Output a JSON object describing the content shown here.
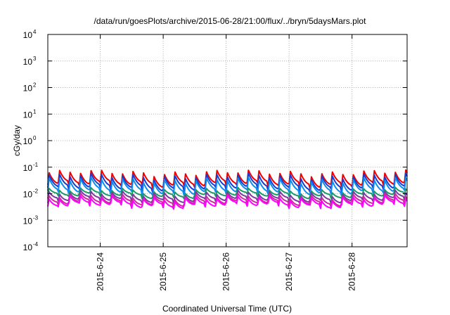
{
  "chart_data": {
    "type": "line",
    "title": "/data/run/goesPlots/archive/2015-06-28/21:00/flux/../bryn/5daysMars.plot",
    "xlabel": "Coordinated Universal Time (UTC)",
    "ylabel": "cGy/day",
    "yscale": "log",
    "ylim": [
      0.0001,
      10000
    ],
    "y_ticks": [
      {
        "base": "10",
        "exp": "-4"
      },
      {
        "base": "10",
        "exp": "-3"
      },
      {
        "base": "10",
        "exp": "-2"
      },
      {
        "base": "10",
        "exp": "-1"
      },
      {
        "base": "10",
        "exp": "0"
      },
      {
        "base": "10",
        "exp": "1"
      },
      {
        "base": "10",
        "exp": "2"
      },
      {
        "base": "10",
        "exp": "3"
      },
      {
        "base": "10",
        "exp": "4"
      }
    ],
    "x_range_days": [
      "2015-06-23 04:00",
      "2015-06-28 21:00"
    ],
    "x_ticks": [
      "2015-6-24",
      "2015-6-25",
      "2015-6-26",
      "2015-6-27",
      "2015-6-28"
    ],
    "grid": true,
    "legend": "none",
    "cycle_hours": 4,
    "series": [
      {
        "color": "#ee0000",
        "peak": 0.062,
        "trough": 0.0215
      },
      {
        "color": "#1a3ad0",
        "peak": 0.046,
        "trough": 0.0152
      },
      {
        "color": "#0a8cf0",
        "peak": 0.033,
        "trough": 0.011
      },
      {
        "color": "#1a9a6a",
        "peak": 0.0135,
        "trough": 0.0085
      },
      {
        "color": "#7a3aa0",
        "peak": 0.0105,
        "trough": 0.0058
      },
      {
        "color": "#d02aa0",
        "peak": 0.0082,
        "trough": 0.0044
      },
      {
        "color": "#ff00ff",
        "peak": 0.0068,
        "trough": 0.0036
      }
    ]
  }
}
